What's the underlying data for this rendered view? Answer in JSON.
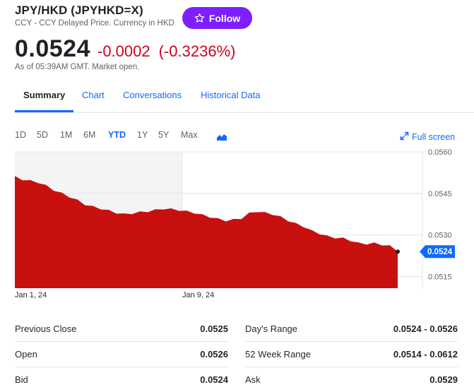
{
  "header": {
    "title": "JPY/HKD (JPYHKD=X)",
    "subtitle": "CCY - CCY Delayed Price. Currency in HKD",
    "follow_label": "Follow",
    "price": "0.0524",
    "change": "-0.0002",
    "change_pct": "(-0.3236%)",
    "as_of": "As of 05:39AM GMT. Market open."
  },
  "colors": {
    "accent": "#0f69ff",
    "follow_bg": "#7e1fff",
    "negative": "#d0021b",
    "chart_fill": "#c8100f",
    "badge": "#0f69ff"
  },
  "tabs": [
    {
      "label": "Summary",
      "active": true
    },
    {
      "label": "Chart",
      "active": false
    },
    {
      "label": "Conversations",
      "active": false
    },
    {
      "label": "Historical Data",
      "active": false
    }
  ],
  "ranges": [
    {
      "label": "1D",
      "active": false
    },
    {
      "label": "5D",
      "active": false
    },
    {
      "label": "1M",
      "active": false
    },
    {
      "label": "6M",
      "active": false
    },
    {
      "label": "YTD",
      "active": true
    },
    {
      "label": "1Y",
      "active": false
    },
    {
      "label": "5Y",
      "active": false
    },
    {
      "label": "Max",
      "active": false
    }
  ],
  "toolbar": {
    "chart_type_icon": "mountain-chart-icon",
    "fullscreen_icon": "expand-arrows-icon",
    "fullscreen_label": "Full screen"
  },
  "chart_data": {
    "type": "area",
    "x_labels": [
      "Jan 1, 24",
      "Jan 9, 24"
    ],
    "y_ticks": [
      "0.0560",
      "0.0545",
      "0.0530",
      "0.0515"
    ],
    "ylim": [
      0.05108,
      0.056
    ],
    "grid": true,
    "current_value": 0.0524,
    "current_label": "0.0524",
    "values": [
      0.05513,
      0.055,
      0.05495,
      0.0549,
      0.05478,
      0.05462,
      0.0545,
      0.05438,
      0.05425,
      0.0541,
      0.05402,
      0.05395,
      0.05388,
      0.0538,
      0.05375,
      0.05378,
      0.05382,
      0.05385,
      0.0539,
      0.05395,
      0.05393,
      0.0539,
      0.05385,
      0.0538,
      0.05372,
      0.05365,
      0.05358,
      0.05352,
      0.05355,
      0.0536,
      0.05378,
      0.05385,
      0.0538,
      0.05375,
      0.05365,
      0.05352,
      0.0534,
      0.0533,
      0.05315,
      0.05305,
      0.05295,
      0.0529,
      0.05288,
      0.0528,
      0.0527,
      0.05268,
      0.0527,
      0.05265,
      0.0526,
      0.0524
    ]
  },
  "stats": {
    "left": [
      {
        "label": "Previous Close",
        "value": "0.0525"
      },
      {
        "label": "Open",
        "value": "0.0526"
      },
      {
        "label": "Bid",
        "value": "0.0524"
      }
    ],
    "right": [
      {
        "label": "Day's Range",
        "value": "0.0524 - 0.0526"
      },
      {
        "label": "52 Week Range",
        "value": "0.0514 - 0.0612"
      },
      {
        "label": "Ask",
        "value": "0.0529"
      }
    ]
  }
}
